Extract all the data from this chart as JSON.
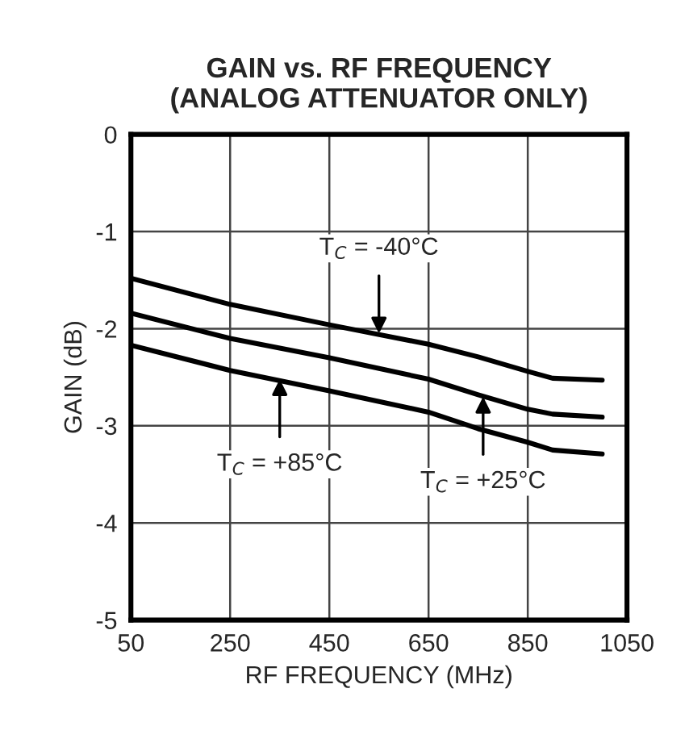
{
  "chart_data": {
    "type": "line",
    "title": "GAIN vs. RF FREQUENCY\n(ANALOG ATTENUATOR ONLY)",
    "xlabel": "RF FREQUENCY (MHz)",
    "ylabel": "GAIN (dB)",
    "x": [
      50,
      250,
      450,
      650,
      750,
      850,
      900,
      1000
    ],
    "series": [
      {
        "color": "#000000",
        "values": [
          -1.48,
          -1.75,
          -1.96,
          -2.16,
          -2.29,
          -2.44,
          -2.51,
          -2.53
        ]
      },
      {
        "color": "#000000",
        "values": [
          -1.84,
          -2.1,
          -2.3,
          -2.52,
          -2.68,
          -2.83,
          -2.88,
          -2.91
        ]
      },
      {
        "color": "#000000",
        "values": [
          -2.17,
          -2.43,
          -2.64,
          -2.86,
          -3.03,
          -3.17,
          -3.25,
          -3.29
        ]
      }
    ],
    "annotations": [
      {
        "text": "T$_{C}$ = -40°C",
        "x": 550,
        "y": -2.05
      },
      {
        "text": "T$_{C}$ = +85°C",
        "x": 350,
        "y": -2.52
      },
      {
        "text": "T$_{C}$ = +25°C",
        "x": 760,
        "y": -2.7
      }
    ],
    "xlim": [
      50,
      1050
    ],
    "xticks": [
      50,
      250,
      450,
      650,
      850,
      1050
    ],
    "ylim": [
      -5,
      0
    ],
    "yticks": [
      -5,
      -4,
      -3,
      -2,
      -1,
      0
    ],
    "grid": true,
    "line_style": "solid",
    "marker": "none"
  }
}
